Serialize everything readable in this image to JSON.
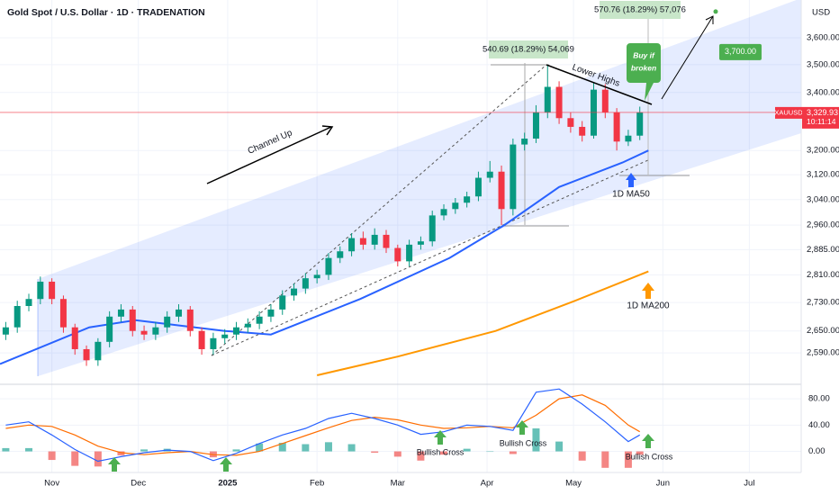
{
  "chart_data": {
    "type": "candlestick",
    "title": "Gold Spot / U.S. Dollar · 1D · TRADENATION",
    "currency": "USD",
    "symbol": "XAUUSD",
    "last_price": {
      "value": 3329.93,
      "label": "3,329.93"
    },
    "countdown": "10:11:14",
    "log_scale": true,
    "grid": true,
    "up_color": "#089981",
    "down_color": "#f23645",
    "xlim": [
      -18,
      260
    ],
    "xticks": [
      {
        "value": 0,
        "label": "Nov"
      },
      {
        "value": 30,
        "label": "Dec"
      },
      {
        "value": 61,
        "label": "2025"
      },
      {
        "value": 92,
        "label": "Feb"
      },
      {
        "value": 120,
        "label": "Mar"
      },
      {
        "value": 151,
        "label": "Apr"
      },
      {
        "value": 181,
        "label": "May"
      },
      {
        "value": 212,
        "label": "Jun"
      },
      {
        "value": 242,
        "label": "Jul"
      }
    ],
    "ylim": [
      2511,
      3745
    ],
    "yticks": [
      {
        "value": 3600,
        "label": "3,600.00"
      },
      {
        "value": 3500,
        "label": "3,500.00"
      },
      {
        "value": 3400,
        "label": "3,400.00"
      },
      {
        "value": 3200,
        "label": "3,200.00"
      },
      {
        "value": 3120,
        "label": "3,120.00"
      },
      {
        "value": 3040,
        "label": "3,040.00"
      },
      {
        "value": 2960,
        "label": "2,960.00"
      },
      {
        "value": 2885,
        "label": "2,885.00"
      },
      {
        "value": 2810,
        "label": "2,810.00"
      },
      {
        "value": 2730,
        "label": "2,730.00"
      },
      {
        "value": 2650,
        "label": "2,650.00"
      },
      {
        "value": 2590,
        "label": "2,590.00"
      }
    ],
    "x": [
      -16,
      -12,
      -8,
      -4,
      0,
      4,
      8,
      12,
      16,
      20,
      24,
      28,
      32,
      36,
      40,
      44,
      48,
      52,
      56,
      60,
      64,
      68,
      72,
      76,
      80,
      84,
      88,
      92,
      96,
      100,
      104,
      108,
      112,
      116,
      120,
      124,
      128,
      132,
      136,
      140,
      144,
      148,
      152,
      156,
      160,
      164,
      168,
      172,
      176,
      180,
      184,
      188,
      192,
      196,
      200,
      204
    ],
    "open": [
      2640,
      2660,
      2720,
      2740,
      2790,
      2740,
      2660,
      2600,
      2570,
      2620,
      2690,
      2710,
      2650,
      2640,
      2660,
      2690,
      2710,
      2650,
      2600,
      2630,
      2640,
      2660,
      2670,
      2690,
      2710,
      2750,
      2770,
      2800,
      2810,
      2860,
      2880,
      2920,
      2900,
      2930,
      2890,
      2850,
      2900,
      2910,
      2990,
      3010,
      3030,
      3050,
      3110,
      3130,
      3010,
      3220,
      3240,
      3330,
      3420,
      3310,
      3280,
      3250,
      3410,
      3330,
      3230,
      3250
    ],
    "high": [
      2675,
      2735,
      2755,
      2805,
      2800,
      2750,
      2670,
      2610,
      2630,
      2705,
      2725,
      2720,
      2665,
      2675,
      2705,
      2725,
      2720,
      2660,
      2645,
      2655,
      2675,
      2685,
      2705,
      2725,
      2765,
      2785,
      2815,
      2825,
      2875,
      2895,
      2935,
      2940,
      2950,
      2945,
      2900,
      2915,
      2925,
      3005,
      3025,
      3045,
      3065,
      3130,
      3165,
      3150,
      3240,
      3260,
      3355,
      3500,
      3440,
      3330,
      3300,
      3435,
      3430,
      3345,
      3270,
      3350
    ],
    "low": [
      2625,
      2645,
      2705,
      2725,
      2725,
      2645,
      2585,
      2555,
      2555,
      2605,
      2675,
      2635,
      2625,
      2625,
      2645,
      2675,
      2635,
      2585,
      2585,
      2615,
      2625,
      2645,
      2655,
      2675,
      2695,
      2735,
      2755,
      2785,
      2795,
      2845,
      2865,
      2885,
      2885,
      2875,
      2835,
      2835,
      2885,
      2895,
      2975,
      2995,
      3015,
      3035,
      3095,
      2960,
      2990,
      3200,
      3225,
      3310,
      3290,
      3260,
      3230,
      3240,
      3310,
      3200,
      3215,
      3235
    ],
    "close": [
      2660,
      2720,
      2740,
      2790,
      2740,
      2660,
      2600,
      2570,
      2620,
      2690,
      2710,
      2650,
      2640,
      2660,
      2690,
      2710,
      2650,
      2600,
      2630,
      2640,
      2660,
      2670,
      2690,
      2710,
      2750,
      2770,
      2800,
      2810,
      2860,
      2880,
      2920,
      2900,
      2930,
      2890,
      2850,
      2900,
      2910,
      2990,
      3010,
      3030,
      3050,
      3110,
      3130,
      3010,
      3220,
      3240,
      3330,
      3420,
      3310,
      3280,
      3250,
      3410,
      3330,
      3230,
      3250,
      3330
    ],
    "ma50": {
      "name": "1D MA50",
      "color": "#2962ff",
      "x": [
        -18,
        13,
        29,
        60,
        76,
        107,
        138,
        157,
        176,
        198,
        207
      ],
      "values": [
        2560,
        2660,
        2680,
        2650,
        2640,
        2740,
        2860,
        2960,
        3080,
        3160,
        3200
      ]
    },
    "ma200": {
      "name": "1D MA200",
      "color": "#ff9800",
      "x": [
        92,
        120,
        154,
        180,
        207
      ],
      "values": [
        2530,
        2580,
        2650,
        2730,
        2820
      ]
    },
    "target": {
      "value": 3700,
      "label": "3,700.00"
    },
    "annotations": {
      "channel": "Channel Up",
      "lower_highs": "Lower Highs",
      "buy_line1": "Buy if",
      "buy_line2": "broken",
      "measure1": "540.69 (18.29%) 54,069",
      "measure2": "570.76 (18.29%) 57,076",
      "bullish_cross": [
        "Bullish Cross",
        "Bullish Cross",
        "Bullish Cross"
      ]
    },
    "macd": {
      "ylim": [
        -28,
        98
      ],
      "yticks": [
        {
          "value": 80,
          "label": "80.00"
        },
        {
          "value": 40,
          "label": "40.00"
        },
        {
          "value": 0,
          "label": "0.00"
        }
      ],
      "macd_color": "#2962ff",
      "signal_color": "#ff6d00",
      "hist_up_color": "#26a69a",
      "hist_down_color": "#ef5350",
      "x": [
        -16,
        -8,
        0,
        8,
        16,
        24,
        32,
        40,
        48,
        56,
        64,
        72,
        80,
        88,
        96,
        104,
        112,
        120,
        128,
        136,
        144,
        152,
        160,
        168,
        176,
        184,
        192,
        200,
        204
      ],
      "macd": [
        40,
        45,
        25,
        3,
        -15,
        -8,
        -2,
        2,
        0,
        -14,
        -3,
        12,
        25,
        35,
        50,
        58,
        50,
        40,
        26,
        30,
        40,
        38,
        32,
        90,
        95,
        72,
        45,
        15,
        25
      ],
      "signal": [
        35,
        40,
        38,
        25,
        8,
        -2,
        -5,
        -2,
        0,
        -5,
        -6,
        0,
        12,
        24,
        36,
        47,
        52,
        48,
        40,
        35,
        36,
        38,
        36,
        55,
        80,
        86,
        70,
        40,
        30
      ],
      "histogram": [
        5,
        5,
        -13,
        -22,
        -23,
        -6,
        3,
        4,
        0,
        -9,
        3,
        12,
        13,
        11,
        14,
        11,
        -2,
        -8,
        -14,
        -5,
        4,
        0,
        -4,
        35,
        15,
        -14,
        -25,
        -25,
        -5
      ]
    }
  }
}
